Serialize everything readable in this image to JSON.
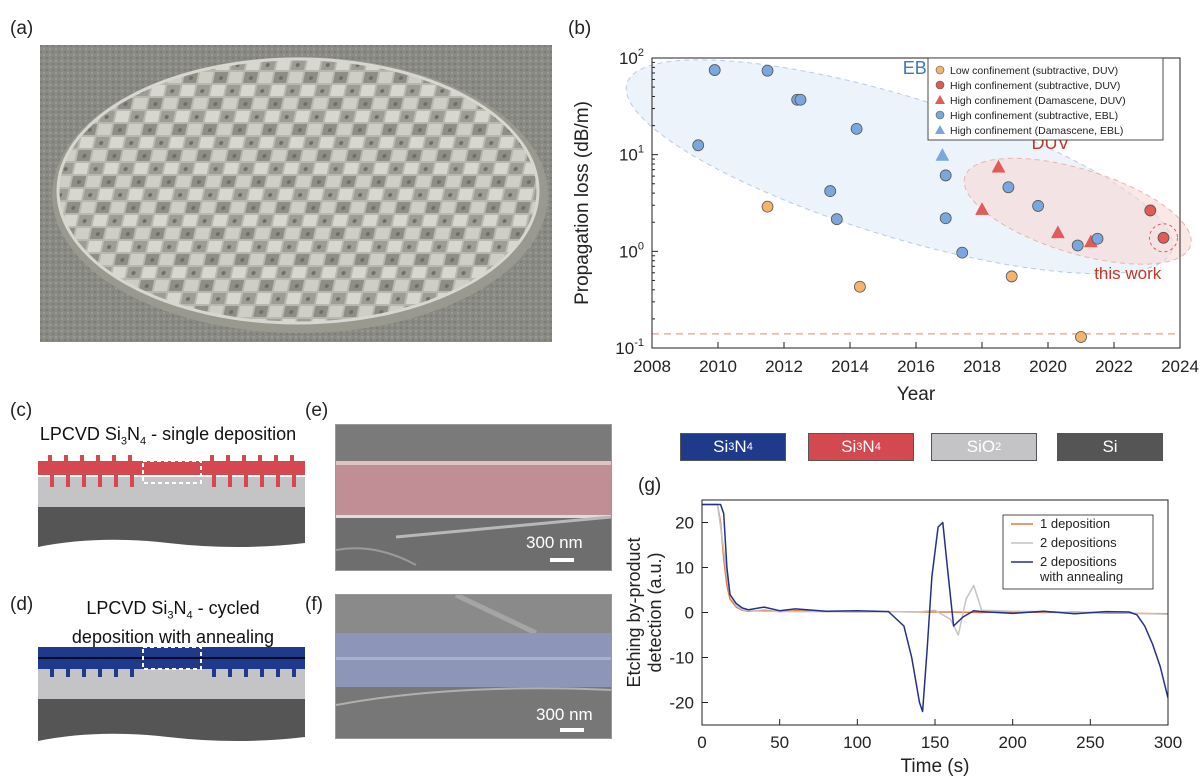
{
  "labels": {
    "a": "(a)",
    "b": "(b)",
    "c": "(c)",
    "d": "(d)",
    "e": "(e)",
    "f": "(f)",
    "g": "(g)"
  },
  "panel_c": {
    "title_pre": "LPCVD Si",
    "title_sub": "3",
    "title_mid": "N",
    "title_sub2": "4",
    "title_post": " - single deposition"
  },
  "panel_d": {
    "title_line1_pre": "LPCVD Si",
    "title_sub": "3",
    "title_mid": "N",
    "title_sub2": "4",
    "title_line1_post": " - cycled",
    "title_line2": "deposition with annealing"
  },
  "scalebar_e": "300 nm",
  "scalebar_f": "300 nm",
  "materials": [
    {
      "base": "Si",
      "sub1": "3",
      "mid": "N",
      "sub2": "4",
      "color": "#1f3a8a"
    },
    {
      "base": "Si",
      "sub1": "3",
      "mid": "N",
      "sub2": "4",
      "color": "#d4484f"
    },
    {
      "base": "SiO",
      "sub1": "2",
      "mid": "",
      "sub2": "",
      "color": "#c4c4c6"
    },
    {
      "base": "Si",
      "sub1": "",
      "mid": "",
      "sub2": "",
      "color": "#555555"
    }
  ],
  "chart_data": [
    {
      "type": "scatter",
      "xlabel": "Year",
      "ylabel": "Propagation loss (dB/m)",
      "yscale": "log",
      "xlim": [
        2008,
        2024
      ],
      "ylim": [
        0.1,
        100
      ],
      "x_ticks": [
        "2008",
        "2010",
        "2012",
        "2014",
        "2016",
        "2018",
        "2020",
        "2022",
        "2024"
      ],
      "y_ticks": [
        "10-1",
        "100",
        "101",
        "102"
      ],
      "annotations": [
        "EBL",
        "DUV",
        "this work"
      ],
      "threshold_line": 0.14,
      "legend_position": "top-right",
      "series": [
        {
          "name": "Low confinement (subtractive, DUV)",
          "marker": "circle",
          "color": "#f2b56b",
          "points": [
            [
              2011.5,
              2.9
            ],
            [
              2014.3,
              0.43
            ],
            [
              2018.9,
              0.55
            ],
            [
              2021.0,
              0.13
            ]
          ]
        },
        {
          "name": "High confinement (subtractive, DUV)",
          "marker": "circle",
          "color": "#e25b55",
          "points": [
            [
              2023.1,
              2.65
            ],
            [
              2023.5,
              1.38
            ]
          ]
        },
        {
          "name": "High confinement (Damascene, DUV)",
          "marker": "triangle",
          "color": "#e25b55",
          "points": [
            [
              2018.5,
              7.4
            ],
            [
              2018.0,
              2.7
            ],
            [
              2020.3,
              1.55
            ],
            [
              2021.3,
              1.25
            ]
          ]
        },
        {
          "name": "High confinement (subtractive, EBL)",
          "marker": "circle",
          "color": "#7aa8de",
          "points": [
            [
              2009.4,
              12.5
            ],
            [
              2009.9,
              75
            ],
            [
              2011.5,
              74
            ],
            [
              2012.4,
              37
            ],
            [
              2012.5,
              37
            ],
            [
              2014.2,
              18.5
            ],
            [
              2013.4,
              4.2
            ],
            [
              2013.6,
              2.15
            ],
            [
              2016.9,
              6.1
            ],
            [
              2016.9,
              2.2
            ],
            [
              2017.4,
              0.97
            ],
            [
              2018.8,
              4.6
            ],
            [
              2019.7,
              2.95
            ],
            [
              2020.9,
              1.15
            ],
            [
              2021.5,
              1.35
            ]
          ]
        },
        {
          "name": "High confinement (Damascene, EBL)",
          "marker": "triangle",
          "color": "#7aa8de",
          "points": [
            [
              2016.8,
              9.8
            ]
          ]
        }
      ]
    },
    {
      "type": "line",
      "xlabel": "Time (s)",
      "ylabel": "Etching by-product detection (a.u.)",
      "ylabel_line1": "Etching by-product",
      "ylabel_line2": "detection (a.u.)",
      "xlim": [
        0,
        300
      ],
      "ylim": [
        -25,
        25
      ],
      "x_ticks": [
        "0",
        "50",
        "100",
        "150",
        "200",
        "250",
        "300"
      ],
      "y_ticks": [
        "-20",
        "-10",
        "0",
        "10",
        "20"
      ],
      "legend_position": "top-right",
      "series": [
        {
          "name": "1 deposition",
          "color": "#e07a44",
          "x": [
            0,
            5,
            10,
            12,
            14,
            16,
            18,
            22,
            26,
            30,
            40,
            50,
            60,
            80,
            100,
            120,
            140,
            160,
            180,
            200,
            220,
            240,
            260,
            280,
            300
          ],
          "y": [
            24,
            24,
            24,
            20,
            12,
            6,
            3,
            1.2,
            0.5,
            0.3,
            0.5,
            0.2,
            0.4,
            0.2,
            0.1,
            0.2,
            0.1,
            0.1,
            0.0,
            0.1,
            0.0,
            0.1,
            -0.1,
            -0.2,
            -0.3
          ]
        },
        {
          "name": "2 depositions",
          "color": "#c4c4c6",
          "x": [
            0,
            5,
            10,
            14,
            16,
            18,
            22,
            26,
            30,
            40,
            60,
            80,
            100,
            120,
            140,
            150,
            160,
            165,
            170,
            175,
            180,
            200,
            220,
            240,
            260,
            280,
            300
          ],
          "y": [
            24,
            24,
            24,
            14,
            8,
            4,
            1.5,
            0.6,
            0.4,
            0.3,
            0.2,
            0.2,
            0.1,
            0.2,
            0.1,
            0.5,
            -1.5,
            -5,
            3,
            6,
            0.5,
            0.3,
            0.2,
            0.0,
            0.1,
            -0.2,
            -0.4
          ]
        },
        {
          "name": "2 depositions",
          "name_line2": "with annealing",
          "color": "#24308a",
          "x": [
            0,
            8,
            12,
            14,
            16,
            18,
            22,
            26,
            30,
            40,
            50,
            60,
            80,
            100,
            120,
            130,
            135,
            140,
            142,
            145,
            148,
            152,
            155,
            158,
            162,
            168,
            175,
            180,
            200,
            220,
            240,
            260,
            275,
            280,
            285,
            290,
            295,
            300
          ],
          "y": [
            24,
            24,
            24,
            22,
            10,
            4,
            2,
            1,
            0.6,
            1.2,
            0.4,
            0.8,
            0.3,
            0.4,
            0.2,
            -3,
            -10,
            -20,
            -22,
            -8,
            8,
            19,
            20,
            10,
            -3,
            -1,
            0.4,
            0.2,
            -0.2,
            0.3,
            -0.3,
            0.2,
            0.1,
            -0.5,
            -3,
            -7,
            -12,
            -19
          ]
        }
      ]
    }
  ]
}
